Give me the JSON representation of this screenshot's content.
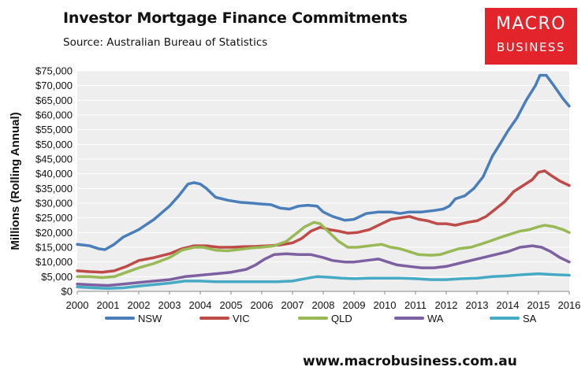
{
  "header": {
    "title": "Investor Mortgage Finance Commitments",
    "subtitle": "Source: Australian Bureau of Statistics"
  },
  "logo": {
    "line1": "MACRO",
    "line2": "BUSINESS"
  },
  "footer": {
    "url": "www.macrobusiness.com.au"
  },
  "colors": {
    "NSW": "#4a7ebb",
    "VIC": "#be4b48",
    "QLD": "#98b954",
    "WA": "#7d60a0",
    "SA": "#46aac5",
    "plot_bg": "#eeeeee",
    "logo_bg": "#e3242b"
  },
  "chart_data": {
    "type": "line",
    "title": "Investor Mortgage Finance Commitments",
    "subtitle": "Source: Australian Bureau of Statistics",
    "xlabel": "",
    "ylabel": "Millions (Rolling Annual)",
    "xlim": [
      2000,
      2016
    ],
    "ylim": [
      0,
      75000
    ],
    "x_ticks": [
      "2000",
      "2001",
      "2002",
      "2003",
      "2004",
      "2005",
      "2006",
      "2007",
      "2008",
      "2009",
      "2010",
      "2011",
      "2012",
      "2013",
      "2014",
      "2015",
      "2016"
    ],
    "y_ticks": [
      "$0",
      "$5,000",
      "$10,000",
      "$15,000",
      "$20,000",
      "$25,000",
      "$30,000",
      "$35,000",
      "$40,000",
      "$45,000",
      "$50,000",
      "$55,000",
      "$60,000",
      "$65,000",
      "$70,000",
      "$75,000"
    ],
    "y_tick_values": [
      0,
      5000,
      10000,
      15000,
      20000,
      25000,
      30000,
      35000,
      40000,
      45000,
      50000,
      55000,
      60000,
      65000,
      70000,
      75000
    ],
    "grid": "horizontal",
    "legend_position": "bottom",
    "series": [
      {
        "name": "NSW",
        "color": "#4a7ebb",
        "points": [
          [
            2000.0,
            16000
          ],
          [
            2000.4,
            15500
          ],
          [
            2000.7,
            14500
          ],
          [
            2000.9,
            14200
          ],
          [
            2001.2,
            16000
          ],
          [
            2001.5,
            18500
          ],
          [
            2002.0,
            21000
          ],
          [
            2002.5,
            24500
          ],
          [
            2003.0,
            29000
          ],
          [
            2003.3,
            32500
          ],
          [
            2003.6,
            36500
          ],
          [
            2003.8,
            37000
          ],
          [
            2004.0,
            36500
          ],
          [
            2004.2,
            35000
          ],
          [
            2004.5,
            32000
          ],
          [
            2004.9,
            31000
          ],
          [
            2005.3,
            30300
          ],
          [
            2005.7,
            30000
          ],
          [
            2006.0,
            29700
          ],
          [
            2006.3,
            29500
          ],
          [
            2006.6,
            28300
          ],
          [
            2006.9,
            28000
          ],
          [
            2007.2,
            29000
          ],
          [
            2007.5,
            29300
          ],
          [
            2007.8,
            29000
          ],
          [
            2008.0,
            27000
          ],
          [
            2008.3,
            25500
          ],
          [
            2008.7,
            24200
          ],
          [
            2009.0,
            24500
          ],
          [
            2009.4,
            26500
          ],
          [
            2009.8,
            27000
          ],
          [
            2010.2,
            27000
          ],
          [
            2010.5,
            26500
          ],
          [
            2010.8,
            27000
          ],
          [
            2011.2,
            27000
          ],
          [
            2011.6,
            27500
          ],
          [
            2011.9,
            28000
          ],
          [
            2012.1,
            29000
          ],
          [
            2012.3,
            31500
          ],
          [
            2012.6,
            32500
          ],
          [
            2012.9,
            35000
          ],
          [
            2013.2,
            39000
          ],
          [
            2013.5,
            46000
          ],
          [
            2013.8,
            51000
          ],
          [
            2014.0,
            54500
          ],
          [
            2014.3,
            59000
          ],
          [
            2014.6,
            65000
          ],
          [
            2014.9,
            70000
          ],
          [
            2015.05,
            73500
          ],
          [
            2015.25,
            73500
          ],
          [
            2015.5,
            70000
          ],
          [
            2015.8,
            65500
          ],
          [
            2016.0,
            63000
          ]
        ]
      },
      {
        "name": "VIC",
        "color": "#be4b48",
        "points": [
          [
            2000.0,
            7000
          ],
          [
            2000.4,
            6700
          ],
          [
            2000.8,
            6500
          ],
          [
            2001.2,
            7000
          ],
          [
            2001.6,
            8500
          ],
          [
            2002.0,
            10500
          ],
          [
            2002.5,
            11500
          ],
          [
            2003.0,
            12800
          ],
          [
            2003.4,
            14500
          ],
          [
            2003.8,
            15500
          ],
          [
            2004.2,
            15500
          ],
          [
            2004.6,
            15000
          ],
          [
            2005.0,
            15000
          ],
          [
            2005.4,
            15200
          ],
          [
            2005.8,
            15300
          ],
          [
            2006.2,
            15500
          ],
          [
            2006.6,
            15800
          ],
          [
            2007.0,
            16500
          ],
          [
            2007.3,
            18000
          ],
          [
            2007.6,
            20500
          ],
          [
            2007.9,
            21800
          ],
          [
            2008.2,
            21000
          ],
          [
            2008.5,
            20500
          ],
          [
            2008.8,
            19800
          ],
          [
            2009.1,
            20000
          ],
          [
            2009.5,
            21000
          ],
          [
            2009.9,
            23000
          ],
          [
            2010.2,
            24500
          ],
          [
            2010.5,
            25000
          ],
          [
            2010.8,
            25500
          ],
          [
            2011.1,
            24500
          ],
          [
            2011.4,
            24000
          ],
          [
            2011.7,
            23000
          ],
          [
            2012.0,
            23000
          ],
          [
            2012.3,
            22500
          ],
          [
            2012.7,
            23500
          ],
          [
            2013.0,
            24000
          ],
          [
            2013.3,
            25500
          ],
          [
            2013.6,
            28000
          ],
          [
            2013.9,
            30500
          ],
          [
            2014.2,
            34000
          ],
          [
            2014.5,
            36000
          ],
          [
            2014.8,
            38000
          ],
          [
            2015.0,
            40500
          ],
          [
            2015.2,
            41000
          ],
          [
            2015.4,
            39500
          ],
          [
            2015.7,
            37500
          ],
          [
            2016.0,
            36000
          ]
        ]
      },
      {
        "name": "QLD",
        "color": "#98b954",
        "points": [
          [
            2000.0,
            5000
          ],
          [
            2000.4,
            5000
          ],
          [
            2000.8,
            4700
          ],
          [
            2001.2,
            5000
          ],
          [
            2001.6,
            6500
          ],
          [
            2002.0,
            8000
          ],
          [
            2002.5,
            9500
          ],
          [
            2003.0,
            11500
          ],
          [
            2003.4,
            14000
          ],
          [
            2003.8,
            15000
          ],
          [
            2004.1,
            15000
          ],
          [
            2004.5,
            14000
          ],
          [
            2004.9,
            13800
          ],
          [
            2005.3,
            14300
          ],
          [
            2005.7,
            14800
          ],
          [
            2006.0,
            15000
          ],
          [
            2006.4,
            15500
          ],
          [
            2006.8,
            17000
          ],
          [
            2007.1,
            19500
          ],
          [
            2007.4,
            22000
          ],
          [
            2007.7,
            23500
          ],
          [
            2007.9,
            23000
          ],
          [
            2008.2,
            20000
          ],
          [
            2008.5,
            17000
          ],
          [
            2008.8,
            15000
          ],
          [
            2009.1,
            15000
          ],
          [
            2009.5,
            15500
          ],
          [
            2009.9,
            16000
          ],
          [
            2010.2,
            15000
          ],
          [
            2010.5,
            14500
          ],
          [
            2010.8,
            13500
          ],
          [
            2011.1,
            12500
          ],
          [
            2011.5,
            12300
          ],
          [
            2011.8,
            12500
          ],
          [
            2012.1,
            13500
          ],
          [
            2012.4,
            14500
          ],
          [
            2012.8,
            15000
          ],
          [
            2013.1,
            16000
          ],
          [
            2013.4,
            17000
          ],
          [
            2013.8,
            18500
          ],
          [
            2014.1,
            19500
          ],
          [
            2014.4,
            20500
          ],
          [
            2014.7,
            21000
          ],
          [
            2015.0,
            22000
          ],
          [
            2015.2,
            22500
          ],
          [
            2015.5,
            22000
          ],
          [
            2015.8,
            21000
          ],
          [
            2016.0,
            20000
          ]
        ]
      },
      {
        "name": "WA",
        "color": "#7d60a0",
        "points": [
          [
            2000.0,
            2500
          ],
          [
            2000.5,
            2200
          ],
          [
            2001.0,
            2000
          ],
          [
            2001.5,
            2500
          ],
          [
            2002.0,
            3000
          ],
          [
            2002.5,
            3500
          ],
          [
            2003.0,
            4000
          ],
          [
            2003.5,
            5000
          ],
          [
            2004.0,
            5500
          ],
          [
            2004.5,
            6000
          ],
          [
            2005.0,
            6500
          ],
          [
            2005.5,
            7500
          ],
          [
            2005.8,
            9000
          ],
          [
            2006.1,
            11000
          ],
          [
            2006.4,
            12500
          ],
          [
            2006.8,
            12800
          ],
          [
            2007.2,
            12500
          ],
          [
            2007.6,
            12500
          ],
          [
            2008.0,
            11500
          ],
          [
            2008.3,
            10500
          ],
          [
            2008.7,
            10000
          ],
          [
            2009.0,
            10000
          ],
          [
            2009.4,
            10500
          ],
          [
            2009.8,
            11000
          ],
          [
            2010.1,
            10000
          ],
          [
            2010.4,
            9000
          ],
          [
            2010.8,
            8500
          ],
          [
            2011.2,
            8000
          ],
          [
            2011.6,
            8000
          ],
          [
            2012.0,
            8500
          ],
          [
            2012.4,
            9500
          ],
          [
            2012.8,
            10500
          ],
          [
            2013.2,
            11500
          ],
          [
            2013.6,
            12500
          ],
          [
            2014.0,
            13500
          ],
          [
            2014.4,
            15000
          ],
          [
            2014.8,
            15500
          ],
          [
            2015.1,
            15000
          ],
          [
            2015.4,
            13500
          ],
          [
            2015.7,
            11500
          ],
          [
            2016.0,
            10000
          ]
        ]
      },
      {
        "name": "SA",
        "color": "#46aac5",
        "points": [
          [
            2000.0,
            1500
          ],
          [
            2000.5,
            1200
          ],
          [
            2001.0,
            1000
          ],
          [
            2001.5,
            1200
          ],
          [
            2002.0,
            1800
          ],
          [
            2002.5,
            2300
          ],
          [
            2003.0,
            2800
          ],
          [
            2003.5,
            3500
          ],
          [
            2004.0,
            3500
          ],
          [
            2004.5,
            3300
          ],
          [
            2005.0,
            3300
          ],
          [
            2005.5,
            3300
          ],
          [
            2006.0,
            3300
          ],
          [
            2006.5,
            3300
          ],
          [
            2007.0,
            3500
          ],
          [
            2007.5,
            4500
          ],
          [
            2007.8,
            5000
          ],
          [
            2008.2,
            4800
          ],
          [
            2008.6,
            4500
          ],
          [
            2009.0,
            4300
          ],
          [
            2009.5,
            4500
          ],
          [
            2010.0,
            4500
          ],
          [
            2010.5,
            4500
          ],
          [
            2011.0,
            4300
          ],
          [
            2011.5,
            4000
          ],
          [
            2012.0,
            4000
          ],
          [
            2012.5,
            4300
          ],
          [
            2013.0,
            4500
          ],
          [
            2013.5,
            5000
          ],
          [
            2014.0,
            5300
          ],
          [
            2014.5,
            5700
          ],
          [
            2015.0,
            6000
          ],
          [
            2015.5,
            5700
          ],
          [
            2016.0,
            5500
          ]
        ]
      }
    ]
  }
}
